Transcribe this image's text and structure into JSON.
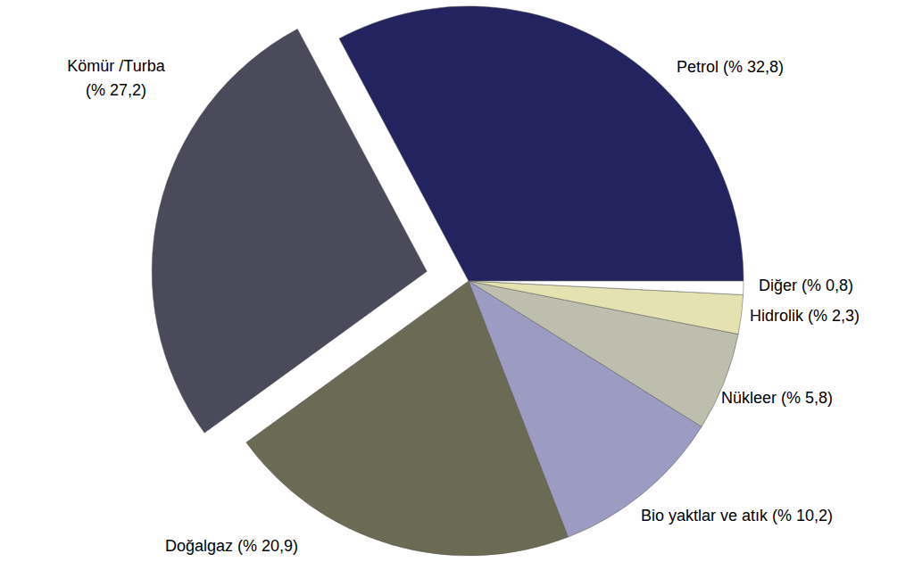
{
  "chart_data": {
    "type": "pie",
    "categories": [
      "Petrol",
      "Kömür /Turba",
      "Doğalgaz",
      "Bio yaktlar ve atık",
      "Nükleer",
      "Hidrolik",
      "Diğer"
    ],
    "values": [
      32.8,
      27.2,
      20.9,
      10.2,
      5.8,
      2.3,
      0.8
    ],
    "value_labels": [
      "(% 32,8)",
      "(% 27,2)",
      "(% 20,9)",
      "(% 10,2)",
      "(% 5,8)",
      "(% 2,3)",
      "(% 0,8)"
    ],
    "colors": [
      "#23235f",
      "#4a4a5a",
      "#6b6b55",
      "#9c9cc2",
      "#bebeae",
      "#e4e2b0",
      "#ffffff"
    ],
    "data_labels": true
  }
}
